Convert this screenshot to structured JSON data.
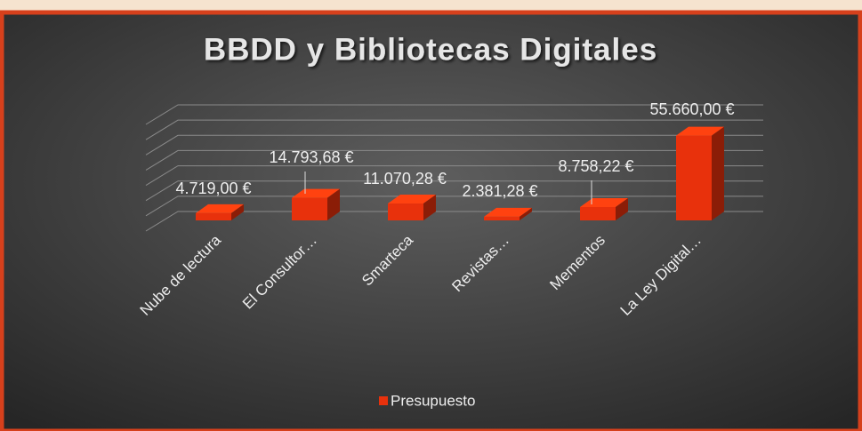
{
  "chart_data": {
    "type": "bar",
    "title": "BBDD y Bibliotecas Digitales",
    "categories": [
      "Nube de lectura",
      "El Consultor…",
      "Smarteca",
      "Revistas…",
      "Mementos",
      "La Ley Digital…"
    ],
    "series": [
      {
        "name": "Presupuesto",
        "color": "#e8310c",
        "values": [
          4719,
          14793.68,
          11070.28,
          2381.28,
          8758.22,
          55660
        ],
        "value_labels": [
          "4.719,00 €",
          "14.793,68 €",
          "11.070,28 €",
          "2.381,28 €",
          "8.758,22 €",
          "55.660,00 €"
        ]
      }
    ],
    "ylim": [
      0,
      70000
    ],
    "yticks": [
      0,
      10000,
      20000,
      30000,
      40000,
      50000,
      60000,
      70000
    ],
    "grid": true,
    "legend": "bottom"
  }
}
